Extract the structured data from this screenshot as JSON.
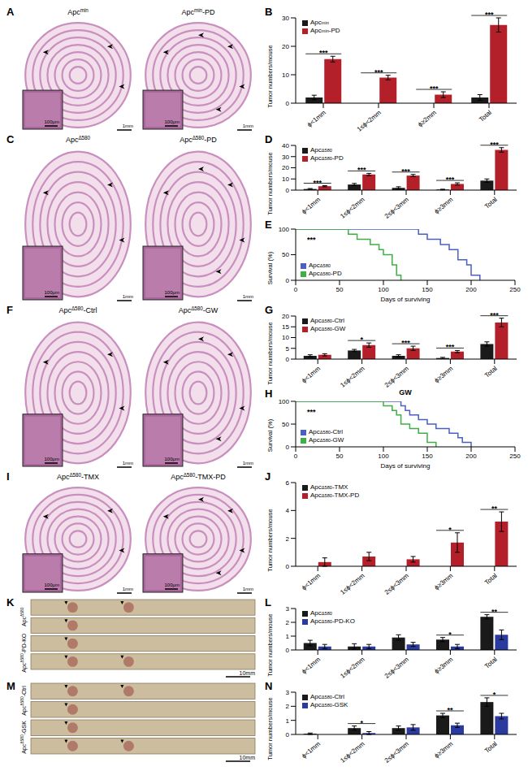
{
  "chart_data": [
    {
      "panel": "B",
      "type": "bar",
      "y_label": "Tumor numbers/mouse",
      "categories": [
        "ϕ<1mm",
        "1≤ϕ<2mm",
        "ϕ≥2mm",
        "Total"
      ],
      "ylim": [
        0,
        30
      ],
      "yticks": [
        0,
        10,
        20,
        30
      ],
      "grid": false,
      "legend": "upper left",
      "series": [
        {
          "name": "Apcmin",
          "color": "#1a1a1a",
          "values": [
            2,
            0,
            0,
            2
          ],
          "errors": [
            0.8,
            0,
            0,
            1
          ]
        },
        {
          "name": "Apcmin-PD",
          "color": "#b3202a",
          "values": [
            15.5,
            9,
            3,
            27.5
          ],
          "errors": [
            1,
            0.8,
            1,
            2.5
          ]
        }
      ],
      "significance": [
        "***",
        "***",
        "***",
        "***"
      ]
    },
    {
      "panel": "D",
      "type": "bar",
      "y_label": "Tumor numbers/mouse",
      "categories": [
        "ϕ<1mm",
        "1≤ϕ<2mm",
        "2≤ϕ<3mm",
        "ϕ≥3mm",
        "Total"
      ],
      "ylim": [
        0,
        40
      ],
      "yticks": [
        0,
        10,
        20,
        30,
        40
      ],
      "grid": false,
      "legend": "upper left",
      "series": [
        {
          "name": "ApcΔ580",
          "color": "#1a1a1a",
          "values": [
            1,
            5,
            2,
            0.5,
            8.5
          ],
          "errors": [
            0.4,
            1,
            1,
            0.3,
            1.5
          ]
        },
        {
          "name": "ApcΔ580-PD",
          "color": "#b3202a",
          "values": [
            3.5,
            14,
            13,
            5.5,
            36
          ],
          "errors": [
            0.5,
            1,
            1,
            1,
            2
          ]
        }
      ],
      "significance": [
        "***",
        "***",
        "***",
        "***",
        "***"
      ]
    },
    {
      "panel": "E",
      "type": "line",
      "line_style": "step",
      "y_label": "Survival (%)",
      "x_label": "Days of surviving",
      "xlim": [
        0,
        250
      ],
      "xticks": [
        0,
        50,
        100,
        150,
        200,
        250
      ],
      "ylim": [
        0,
        100
      ],
      "yticks": [
        0,
        50,
        100
      ],
      "legend": "lower left",
      "significance": "***",
      "series": [
        {
          "name": "ApcΔ580",
          "color": "#4a5fc1",
          "x": [
            0,
            140,
            150,
            165,
            175,
            185,
            195,
            200,
            210
          ],
          "values": [
            100,
            90,
            80,
            70,
            60,
            40,
            30,
            10,
            0
          ]
        },
        {
          "name": "ApcΔ580-PD",
          "color": "#3cb043",
          "x": [
            0,
            60,
            70,
            85,
            95,
            100,
            110,
            115,
            120
          ],
          "values": [
            100,
            90,
            80,
            70,
            60,
            50,
            30,
            10,
            0
          ]
        }
      ]
    },
    {
      "panel": "G",
      "type": "bar",
      "y_label": "Tumor numbers/mouse",
      "categories": [
        "ϕ<1mm",
        "1≤ϕ<2mm",
        "2≤ϕ<3mm",
        "ϕ≥3mm",
        "Total"
      ],
      "ylim": [
        0,
        20
      ],
      "yticks": [
        0,
        5,
        10,
        15,
        20
      ],
      "grid": false,
      "legend": "upper left",
      "series": [
        {
          "name": "ApcΔ580-Ctrl",
          "color": "#1a1a1a",
          "values": [
            1.5,
            4,
            1.5,
            0.5,
            7
          ],
          "errors": [
            0.5,
            0.5,
            0.5,
            0.3,
            1
          ]
        },
        {
          "name": "ApcΔ580-GW",
          "color": "#b3202a",
          "values": [
            2,
            6.5,
            5,
            3.5,
            17
          ],
          "errors": [
            0.5,
            1,
            1,
            0.5,
            2
          ]
        }
      ],
      "significance": [
        null,
        "*",
        "***",
        "***",
        "***"
      ]
    },
    {
      "panel": "H",
      "type": "line",
      "line_style": "step",
      "title": "GW",
      "y_label": "Survival (%)",
      "x_label": "Days of surviving",
      "xlim": [
        0,
        250
      ],
      "xticks": [
        0,
        50,
        100,
        150,
        200,
        250
      ],
      "ylim": [
        0,
        100
      ],
      "yticks": [
        0,
        50,
        100
      ],
      "legend": "lower left",
      "significance": "***",
      "series": [
        {
          "name": "ApcΔ580-Ctrl",
          "color": "#4a5fc1",
          "x": [
            0,
            120,
            125,
            130,
            140,
            150,
            160,
            175,
            185,
            190,
            200
          ],
          "values": [
            100,
            90,
            80,
            70,
            60,
            50,
            40,
            30,
            20,
            10,
            0
          ]
        },
        {
          "name": "ApcΔ580-GW",
          "color": "#3cb043",
          "x": [
            0,
            100,
            110,
            115,
            120,
            130,
            140,
            150,
            160
          ],
          "values": [
            100,
            90,
            80,
            70,
            50,
            40,
            30,
            10,
            0
          ]
        }
      ]
    },
    {
      "panel": "J",
      "type": "bar",
      "y_label": "Tumor numbers/mouse",
      "categories": [
        "ϕ<1mm",
        "1≤ϕ<2mm",
        "2≤ϕ<3mm",
        "ϕ≥3mm",
        "Total"
      ],
      "ylim": [
        0,
        6
      ],
      "yticks": [
        0,
        2,
        4,
        6
      ],
      "grid": false,
      "legend": "upper left",
      "series": [
        {
          "name": "ApcΔ580-TMX",
          "color": "#1a1a1a",
          "values": [
            0,
            0,
            0,
            0,
            0
          ],
          "errors": [
            0,
            0,
            0,
            0,
            0
          ]
        },
        {
          "name": "ApcΔ580-TMX-PD",
          "color": "#b3202a",
          "values": [
            0.3,
            0.7,
            0.5,
            1.7,
            3.2
          ],
          "errors": [
            0.3,
            0.3,
            0.2,
            0.7,
            0.7
          ]
        }
      ],
      "significance": [
        null,
        null,
        null,
        "*",
        "**"
      ]
    },
    {
      "panel": "L",
      "type": "bar",
      "y_label": "Tumor numbers/mouse",
      "categories": [
        "ϕ<1mm",
        "1≤ϕ<2mm",
        "2≤ϕ<3mm",
        "ϕ≥3mm",
        "Total"
      ],
      "ylim": [
        0,
        3
      ],
      "yticks": [
        0,
        1,
        2,
        3
      ],
      "grid": false,
      "legend": "upper left",
      "series": [
        {
          "name": "ApcΔ580",
          "color": "#1a1a1a",
          "values": [
            0.5,
            0.25,
            0.9,
            0.75,
            2.4
          ],
          "errors": [
            0.2,
            0.2,
            0.2,
            0.15,
            0.15
          ]
        },
        {
          "name": "ApcΔ580-PD-KO",
          "color": "#2b3a9e",
          "values": [
            0.25,
            0.25,
            0.4,
            0.25,
            1.1
          ],
          "errors": [
            0.15,
            0.15,
            0.15,
            0.15,
            0.35
          ]
        }
      ],
      "significance": [
        null,
        null,
        null,
        "*",
        "**"
      ]
    },
    {
      "panel": "N",
      "type": "bar",
      "y_label": "Tumor numbers/mouse",
      "categories": [
        "ϕ<1mm",
        "1≤ϕ<2mm",
        "2≤ϕ<3mm",
        "ϕ≥3mm",
        "Total"
      ],
      "ylim": [
        0,
        3
      ],
      "yticks": [
        0,
        1,
        2,
        3
      ],
      "grid": false,
      "legend": "upper left",
      "series": [
        {
          "name": "ApcΔ580-Ctrl",
          "color": "#1a1a1a",
          "values": [
            0.05,
            0.45,
            0.45,
            1.35,
            2.3
          ],
          "errors": [
            0.05,
            0.15,
            0.15,
            0.15,
            0.3
          ]
        },
        {
          "name": "ApcΔ580-GSK",
          "color": "#2b3a9e",
          "values": [
            0,
            0.1,
            0.5,
            0.65,
            1.3
          ],
          "errors": [
            0,
            0.1,
            0.2,
            0.15,
            0.2
          ]
        }
      ],
      "significance": [
        null,
        "*",
        null,
        "**",
        "*"
      ]
    }
  ],
  "image_panels": [
    {
      "panel": "A",
      "type": "section",
      "labels": [
        "Apcmin",
        "Apcmin-PD"
      ],
      "scale_bar": "1mm",
      "inset_scale_bar": "100μm"
    },
    {
      "panel": "C",
      "type": "section",
      "labels": [
        "ApcΔ580",
        "ApcΔ580-PD"
      ],
      "scale_bar": "1mm",
      "inset_scale_bar": "100μm"
    },
    {
      "panel": "F",
      "type": "section",
      "labels": [
        "ApcΔ580-Ctrl",
        "ApcΔ580-GW"
      ],
      "scale_bar": "1mm",
      "inset_scale_bar": "100μm"
    },
    {
      "panel": "I",
      "type": "section",
      "labels": [
        "ApcΔ580-TMX",
        "ApcΔ580-TMX-PD"
      ],
      "scale_bar": "1mm",
      "inset_scale_bar": "100μm"
    },
    {
      "panel": "K",
      "type": "photo",
      "labels": [
        "ApcΔ580",
        "ApcΔ580-PD-KO"
      ],
      "scale_bar": "10mm"
    },
    {
      "panel": "M",
      "type": "photo",
      "labels": [
        "ApcΔ580-Ctrl",
        "ApcΔ580-GSK"
      ],
      "scale_bar": "10mm"
    }
  ]
}
